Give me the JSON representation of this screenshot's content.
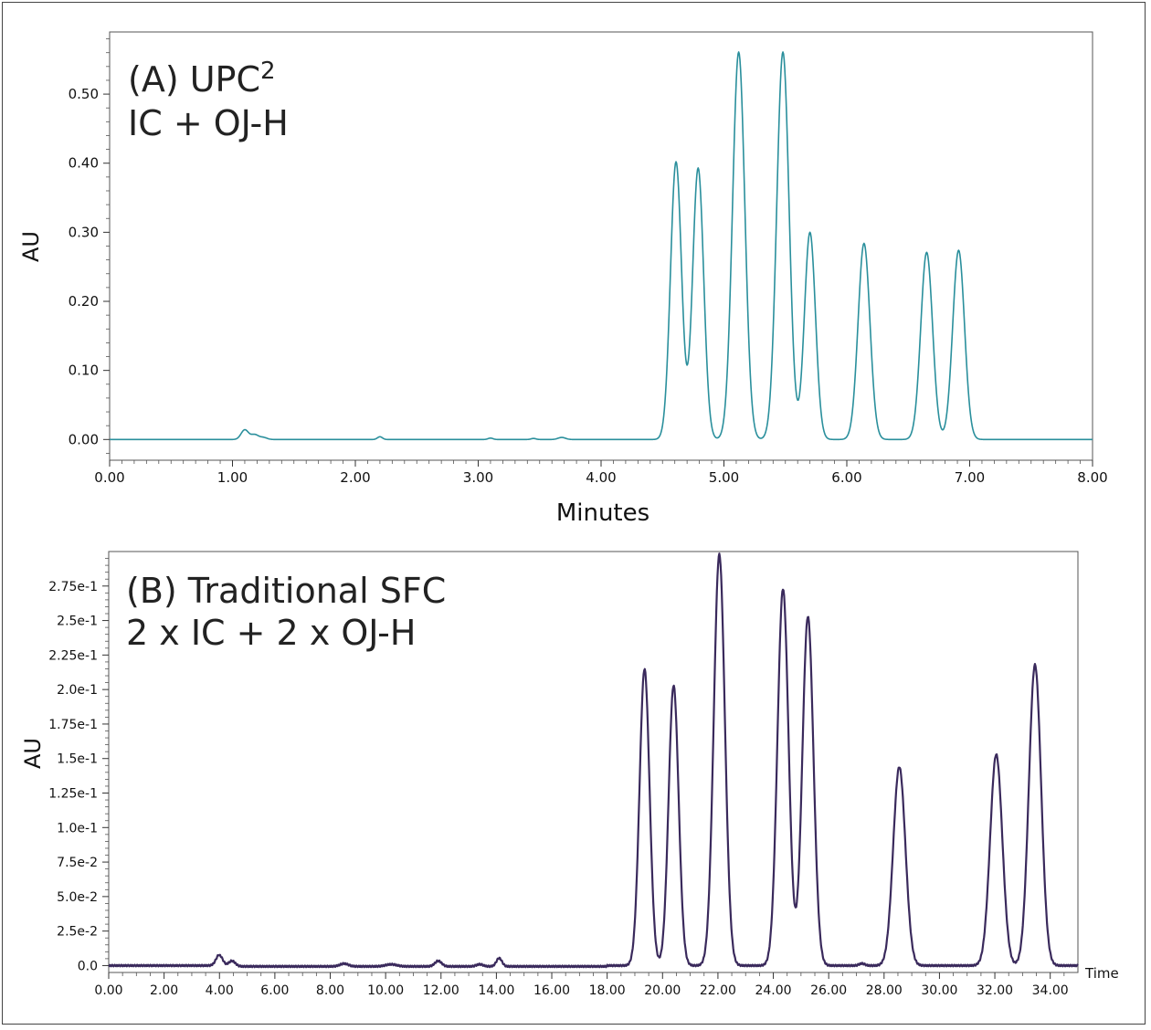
{
  "chart_data": [
    {
      "type": "line",
      "title_line1": "(A) UPC",
      "title_sup": "2",
      "title_line2": "IC + OJ-H",
      "xlabel": "Minutes",
      "ylabel": "AU",
      "xlim": [
        0,
        8
      ],
      "ylim": [
        -0.03,
        0.59
      ],
      "x_ticks": [
        0,
        1,
        2,
        3,
        4,
        5,
        6,
        7,
        8
      ],
      "x_tick_labels": [
        "0.00",
        "1.00",
        "2.00",
        "3.00",
        "4.00",
        "5.00",
        "6.00",
        "7.00",
        "8.00"
      ],
      "y_ticks": [
        0,
        0.1,
        0.2,
        0.3,
        0.4,
        0.5
      ],
      "y_tick_labels": [
        "0.00",
        "0.10",
        "0.20",
        "0.30",
        "0.40",
        "0.50"
      ],
      "color": "#2a8f9c",
      "peaks": [
        {
          "t": 1.1,
          "h": 0.014,
          "w": 0.03
        },
        {
          "t": 1.18,
          "h": 0.007,
          "w": 0.03
        },
        {
          "t": 1.25,
          "h": 0.003,
          "w": 0.03
        },
        {
          "t": 2.2,
          "h": 0.004,
          "w": 0.02
        },
        {
          "t": 3.1,
          "h": 0.002,
          "w": 0.02
        },
        {
          "t": 3.45,
          "h": 0.0015,
          "w": 0.02
        },
        {
          "t": 3.68,
          "h": 0.003,
          "w": 0.03
        },
        {
          "t": 4.61,
          "h": 0.402,
          "w": 0.045
        },
        {
          "t": 4.79,
          "h": 0.393,
          "w": 0.045
        },
        {
          "t": 5.12,
          "h": 0.561,
          "w": 0.05
        },
        {
          "t": 5.48,
          "h": 0.561,
          "w": 0.05
        },
        {
          "t": 5.7,
          "h": 0.3,
          "w": 0.045
        },
        {
          "t": 6.14,
          "h": 0.284,
          "w": 0.048
        },
        {
          "t": 6.65,
          "h": 0.271,
          "w": 0.048
        },
        {
          "t": 6.91,
          "h": 0.274,
          "w": 0.048
        }
      ]
    },
    {
      "type": "line",
      "title_line1": "(B) Traditional SFC",
      "title_line2": "2 x IC + 2 x OJ-H",
      "xlabel": "Time",
      "ylabel": "AU",
      "xlim": [
        0,
        35
      ],
      "ylim": [
        -0.005,
        0.3
      ],
      "x_ticks": [
        0,
        2,
        4,
        6,
        8,
        10,
        12,
        14,
        16,
        18,
        20,
        22,
        24,
        26,
        28,
        30,
        32,
        34
      ],
      "x_tick_labels": [
        "0.00",
        "2.00",
        "4.00",
        "6.00",
        "8.00",
        "10.00",
        "12.00",
        "14.00",
        "16.00",
        "18.00",
        "20.00",
        "22.00",
        "24.00",
        "26.00",
        "28.00",
        "30.00",
        "32.00",
        "34.00"
      ],
      "y_ticks": [
        0,
        0.025,
        0.05,
        0.075,
        0.1,
        0.125,
        0.15,
        0.175,
        0.2,
        0.225,
        0.25,
        0.275
      ],
      "y_tick_labels": [
        "0.0",
        "2.5e-2",
        "5.0e-2",
        "7.5e-2",
        "1.0e-1",
        "1.25e-1",
        "1.5e-1",
        "1.75e-1",
        "2.0e-1",
        "2.25e-1",
        "2.5e-1",
        "2.75e-1"
      ],
      "color": "#3a2a5c",
      "peaks": [
        {
          "t": 4.0,
          "h": 0.008,
          "w": 0.12
        },
        {
          "t": 4.45,
          "h": 0.004,
          "w": 0.12
        },
        {
          "t": 8.5,
          "h": 0.002,
          "w": 0.15
        },
        {
          "t": 10.2,
          "h": 0.0015,
          "w": 0.2
        },
        {
          "t": 11.9,
          "h": 0.004,
          "w": 0.12
        },
        {
          "t": 13.4,
          "h": 0.0015,
          "w": 0.12
        },
        {
          "t": 14.1,
          "h": 0.006,
          "w": 0.1
        },
        {
          "t": 19.35,
          "h": 0.215,
          "w": 0.18
        },
        {
          "t": 20.4,
          "h": 0.203,
          "w": 0.18
        },
        {
          "t": 22.05,
          "h": 0.298,
          "w": 0.2
        },
        {
          "t": 24.35,
          "h": 0.273,
          "w": 0.2
        },
        {
          "t": 25.25,
          "h": 0.253,
          "w": 0.2
        },
        {
          "t": 27.2,
          "h": 0.0015,
          "w": 0.1
        },
        {
          "t": 28.55,
          "h": 0.144,
          "w": 0.22
        },
        {
          "t": 32.05,
          "h": 0.153,
          "w": 0.22
        },
        {
          "t": 33.45,
          "h": 0.218,
          "w": 0.22
        }
      ]
    }
  ]
}
